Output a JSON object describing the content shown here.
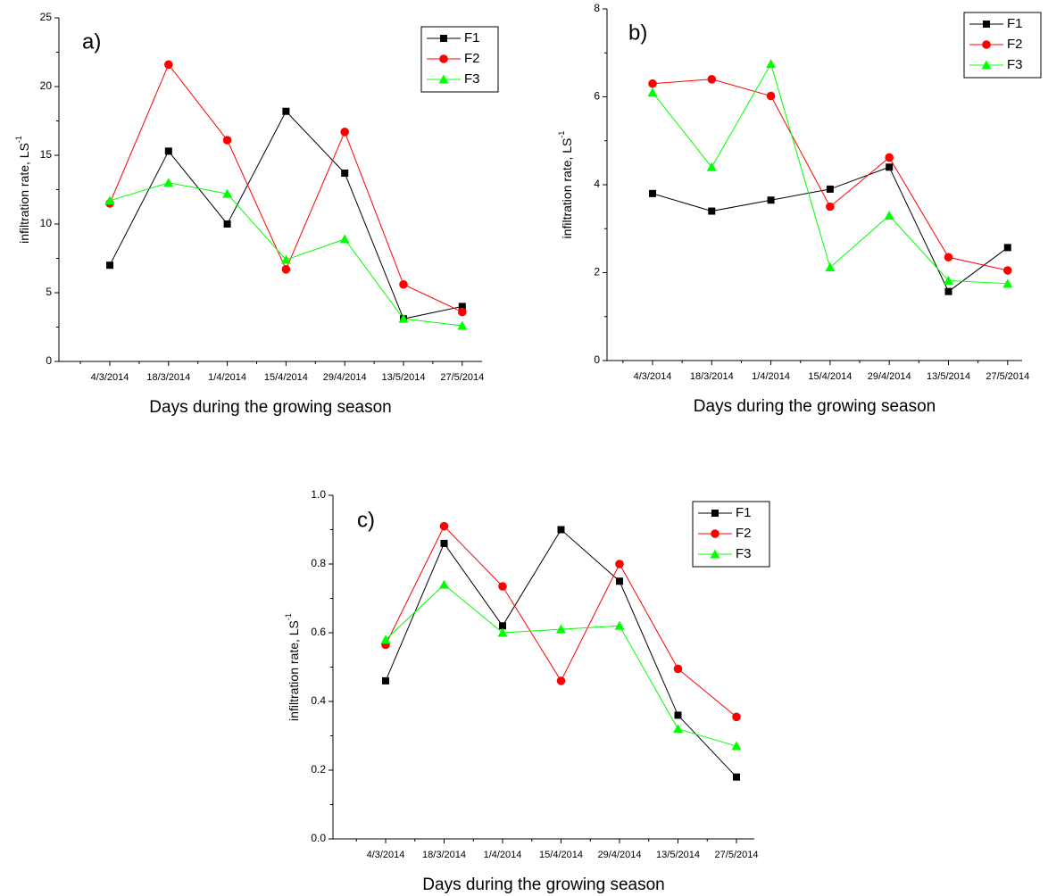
{
  "chart_data": [
    {
      "type": "line",
      "panel_label": "a)",
      "x_label": "Days during the growing season",
      "y_label": "infiltration rate, LS",
      "y_label_sup": "-1",
      "categories": [
        "4/3/2014",
        "18/3/2014",
        "1/4/2014",
        "15/4/2014",
        "29/4/2014",
        "13/5/2014",
        "27/5/2014"
      ],
      "series": [
        {
          "name": "F1",
          "color": "#000000",
          "marker": "square",
          "values": [
            7.0,
            15.3,
            10.0,
            18.2,
            13.7,
            3.1,
            4.0
          ]
        },
        {
          "name": "F2",
          "color": "#ff0000",
          "marker": "circle",
          "values": [
            11.5,
            21.6,
            16.1,
            6.7,
            16.7,
            5.6,
            3.6
          ]
        },
        {
          "name": "F3",
          "color": "#00ff00",
          "marker": "triangle",
          "values": [
            11.7,
            13.0,
            12.2,
            7.4,
            8.9,
            3.1,
            2.6
          ]
        }
      ],
      "ylim": [
        0,
        25
      ],
      "yticks": [
        0,
        5,
        10,
        15,
        20,
        25
      ],
      "legend": "upper right"
    },
    {
      "type": "line",
      "panel_label": "b)",
      "x_label": "Days during the growing season",
      "y_label": "infiltration rate, LS",
      "y_label_sup": "-1",
      "categories": [
        "4/3/2014",
        "18/3/2014",
        "1/4/2014",
        "15/4/2014",
        "29/4/2014",
        "13/5/2014",
        "27/5/2014"
      ],
      "series": [
        {
          "name": "F1",
          "color": "#000000",
          "marker": "square",
          "values": [
            3.8,
            3.4,
            3.65,
            3.9,
            4.4,
            1.57,
            2.57
          ]
        },
        {
          "name": "F2",
          "color": "#ff0000",
          "marker": "circle",
          "values": [
            6.3,
            6.4,
            6.02,
            3.5,
            4.62,
            2.35,
            2.05
          ]
        },
        {
          "name": "F3",
          "color": "#00ff00",
          "marker": "triangle",
          "values": [
            6.1,
            4.4,
            6.75,
            2.12,
            3.3,
            1.82,
            1.75
          ]
        }
      ],
      "ylim": [
        0,
        8
      ],
      "yticks": [
        0,
        2,
        4,
        6,
        8
      ],
      "legend": "upper right"
    },
    {
      "type": "line",
      "panel_label": "c)",
      "x_label": "Days during the growing season",
      "y_label": "infiltration rate, LS",
      "y_label_sup": "-1",
      "categories": [
        "4/3/2014",
        "18/3/2014",
        "1/4/2014",
        "15/4/2014",
        "29/4/2014",
        "13/5/2014",
        "27/5/2014"
      ],
      "series": [
        {
          "name": "F1",
          "color": "#000000",
          "marker": "square",
          "values": [
            0.46,
            0.86,
            0.62,
            0.9,
            0.75,
            0.36,
            0.18
          ]
        },
        {
          "name": "F2",
          "color": "#ff0000",
          "marker": "circle",
          "values": [
            0.565,
            0.91,
            0.735,
            0.46,
            0.8,
            0.495,
            0.355
          ]
        },
        {
          "name": "F3",
          "color": "#00ff00",
          "marker": "triangle",
          "values": [
            0.58,
            0.74,
            0.6,
            0.61,
            0.62,
            0.32,
            0.27
          ]
        }
      ],
      "ylim": [
        0,
        1
      ],
      "yticks": [
        {
          "value": 0,
          "label": "0.0"
        },
        0.2,
        0.4,
        0.6,
        0.8,
        {
          "value": 1,
          "label": "1.0"
        }
      ],
      "legend": "upper right"
    }
  ]
}
